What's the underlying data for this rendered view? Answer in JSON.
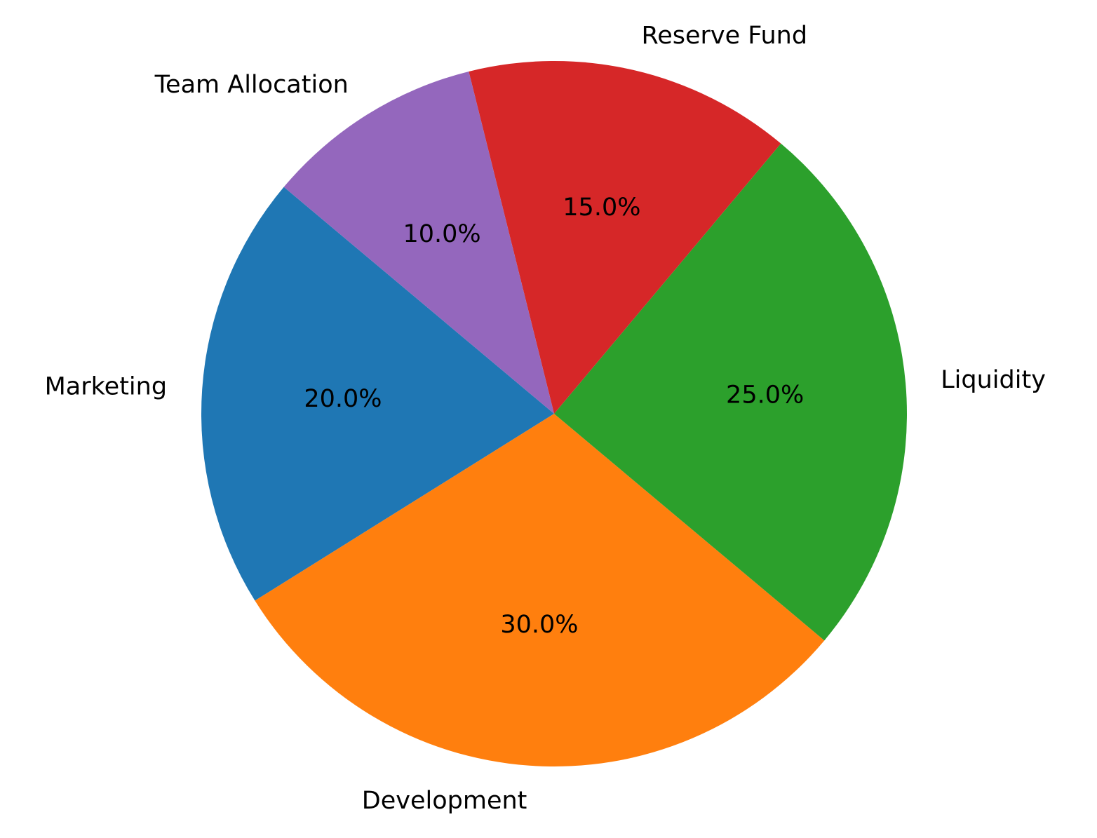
{
  "chart_data": {
    "type": "pie",
    "title": "",
    "start_angle_deg": 140,
    "direction": "counterclockwise",
    "slices": [
      {
        "label": "Marketing",
        "value": 20.0,
        "pct_text": "20.0%",
        "color": "#1f77b4"
      },
      {
        "label": "Development",
        "value": 30.0,
        "pct_text": "30.0%",
        "color": "#ff7f0e"
      },
      {
        "label": "Liquidity",
        "value": 25.0,
        "pct_text": "25.0%",
        "color": "#2ca02c"
      },
      {
        "label": "Reserve Fund",
        "value": 15.0,
        "pct_text": "15.0%",
        "color": "#d62728"
      },
      {
        "label": "Team Allocation",
        "value": 10.0,
        "pct_text": "10.0%",
        "color": "#9467bd"
      }
    ]
  }
}
